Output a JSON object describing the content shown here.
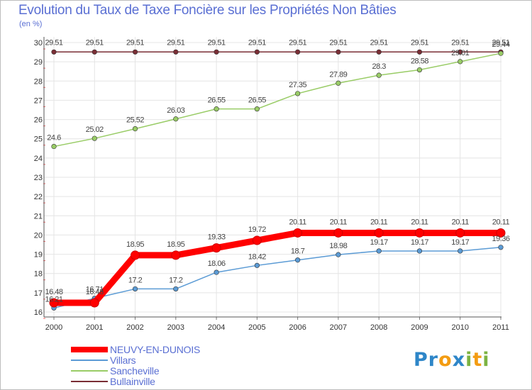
{
  "title": "Evolution du Taux de Taxe Foncière sur les Propriétés Non Bâties",
  "unit_label": "(en %)",
  "logo": {
    "letters": [
      "P",
      "r",
      "o",
      "x",
      "i",
      "t",
      "i"
    ],
    "colors": [
      "#2e86c8",
      "#2e86c8",
      "#f39c12",
      "#2e86c8",
      "#7cb342",
      "#f39c12",
      "#7cb342"
    ]
  },
  "chart_data": {
    "type": "line",
    "title": "Evolution du Taux de Taxe Foncière sur les Propriétés Non Bâties",
    "xlabel": "",
    "ylabel": "(en %)",
    "categories": [
      "2000",
      "2001",
      "2002",
      "2003",
      "2004",
      "2005",
      "2006",
      "2007",
      "2008",
      "2009",
      "2010",
      "2011"
    ],
    "ylim": [
      16,
      30
    ],
    "yticks": [
      "16",
      "17",
      "18",
      "19",
      "20",
      "21",
      "22",
      "23",
      "24",
      "25",
      "26",
      "27",
      "28",
      "29",
      "30"
    ],
    "series": [
      {
        "name": "NEUVY-EN-DUNOIS",
        "color": "#ff0000",
        "values": [
          16.48,
          16.48,
          18.95,
          18.95,
          19.33,
          19.72,
          20.11,
          20.11,
          20.11,
          20.11,
          20.11,
          20.11
        ],
        "value_labels": [
          "16.48",
          "16.48",
          "18.95",
          "18.95",
          "19.33",
          "19.72",
          "20.11",
          "20.11",
          "20.11",
          "20.11",
          "20.11",
          "20.11"
        ]
      },
      {
        "name": "Villars",
        "color": "#5b9bd5",
        "values": [
          16.21,
          16.71,
          17.2,
          17.2,
          18.06,
          18.42,
          18.7,
          18.98,
          19.17,
          19.17,
          19.17,
          19.36
        ],
        "value_labels": [
          "16.21",
          "16.71",
          "17.2",
          "17.2",
          "18.06",
          "18.42",
          "18.7",
          "18.98",
          "19.17",
          "19.17",
          "19.17",
          "19.36"
        ]
      },
      {
        "name": "Sancheville",
        "color": "#99cc66",
        "values": [
          24.6,
          25.02,
          25.52,
          26.03,
          26.55,
          26.55,
          27.35,
          27.89,
          28.3,
          28.58,
          29.01,
          29.44
        ],
        "value_labels": [
          "24.6",
          "25.02",
          "25.52",
          "26.03",
          "26.55",
          "26.55",
          "27.35",
          "27.89",
          "28.3",
          "28.58",
          "29.01",
          "29.44"
        ]
      },
      {
        "name": "Bullainville",
        "color": "#7a2e35",
        "values": [
          29.51,
          29.51,
          29.51,
          29.51,
          29.51,
          29.51,
          29.51,
          29.51,
          29.51,
          29.51,
          29.51,
          29.51
        ],
        "value_labels": [
          "29.51",
          "29.51",
          "29.51",
          "29.51",
          "29.51",
          "29.51",
          "29.51",
          "29.51",
          "29.51",
          "29.51",
          "29.51",
          "29.51"
        ]
      }
    ]
  }
}
